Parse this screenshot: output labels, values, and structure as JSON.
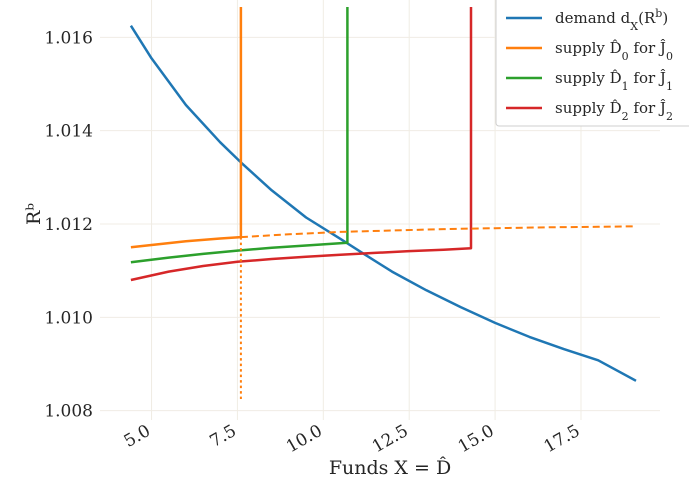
{
  "chart_data": {
    "type": "line",
    "xlabel": "Funds X = D̂",
    "ylabel": "Rᵇ",
    "xlim": [
      3.5,
      19.8
    ],
    "ylim": [
      1.0078,
      1.0168
    ],
    "x_ticks": [
      5.0,
      7.5,
      10.0,
      12.5,
      15.0,
      17.5
    ],
    "x_tick_labels": [
      "5.0",
      "7.5",
      "10.0",
      "12.5",
      "15.0",
      "17.5"
    ],
    "y_ticks": [
      1.008,
      1.01,
      1.012,
      1.014,
      1.016
    ],
    "y_tick_labels": [
      "1.008",
      "1.010",
      "1.012",
      "1.014",
      "1.016"
    ],
    "grid": true,
    "legend_position": "top-right",
    "series": [
      {
        "name": "demand d_X(R^b)",
        "color": "#1f77b4",
        "style": "solid",
        "points": [
          [
            4.4,
            1.01625
          ],
          [
            5.0,
            1.01555
          ],
          [
            6.0,
            1.01455
          ],
          [
            7.0,
            1.01375
          ],
          [
            7.6,
            1.01332
          ],
          [
            8.5,
            1.01272
          ],
          [
            9.5,
            1.01214
          ],
          [
            10.5,
            1.01168
          ],
          [
            11.2,
            1.01135
          ],
          [
            12.0,
            1.01098
          ],
          [
            13.0,
            1.01058
          ],
          [
            14.0,
            1.01022
          ],
          [
            15.0,
            1.00988
          ],
          [
            16.0,
            1.00958
          ],
          [
            17.0,
            1.00932
          ],
          [
            18.0,
            1.00908
          ],
          [
            19.1,
            1.00864
          ]
        ]
      },
      {
        "name": "supply D̂₀ for Ĵ₀",
        "color": "#ff7f0e",
        "style": "solid",
        "points": [
          [
            4.4,
            1.0115
          ],
          [
            5.0,
            1.01155
          ],
          [
            6.0,
            1.01163
          ],
          [
            7.0,
            1.01169
          ],
          [
            7.6,
            1.01172
          ],
          [
            7.6,
            1.01665
          ]
        ]
      },
      {
        "name": "supply D̂₁ for Ĵ₁",
        "color": "#2ca02c",
        "style": "solid",
        "points": [
          [
            4.4,
            1.01118
          ],
          [
            5.5,
            1.01128
          ],
          [
            6.5,
            1.01136
          ],
          [
            7.5,
            1.01143
          ],
          [
            8.5,
            1.01149
          ],
          [
            9.5,
            1.01154
          ],
          [
            10.7,
            1.0116
          ],
          [
            10.7,
            1.01665
          ]
        ]
      },
      {
        "name": "supply D̂₂ for Ĵ₂",
        "color": "#d62728",
        "style": "solid",
        "points": [
          [
            4.4,
            1.0108
          ],
          [
            5.5,
            1.01098
          ],
          [
            6.5,
            1.0111
          ],
          [
            7.5,
            1.01119
          ],
          [
            8.5,
            1.01125
          ],
          [
            9.5,
            1.0113
          ],
          [
            10.5,
            1.01134
          ],
          [
            11.5,
            1.01138
          ],
          [
            12.5,
            1.01142
          ],
          [
            13.5,
            1.01145
          ],
          [
            14.3,
            1.01148
          ],
          [
            14.3,
            1.01665
          ]
        ]
      },
      {
        "color": "#ff7f0e",
        "style": "dashed",
        "points": [
          [
            7.6,
            1.01172
          ],
          [
            9.0,
            1.01178
          ],
          [
            10.5,
            1.01183
          ],
          [
            12.0,
            1.01186
          ],
          [
            13.5,
            1.01189
          ],
          [
            15.0,
            1.01191
          ],
          [
            16.5,
            1.01193
          ],
          [
            18.0,
            1.01194
          ],
          [
            19.1,
            1.01195
          ]
        ]
      },
      {
        "color": "#ff7f0e",
        "style": "dotted",
        "points": [
          [
            7.6,
            1.01172
          ],
          [
            7.6,
            1.00825
          ]
        ]
      }
    ]
  },
  "legend": [
    {
      "label": "demand d",
      "sub": "X",
      "suffix": "(R",
      "sup": "b",
      "close": ")",
      "color": "#1f77b4"
    },
    {
      "label": "supply D̂",
      "sub": "0",
      "suffix": " for Ĵ",
      "sup": "",
      "close": "",
      "sub2": "0",
      "color": "#ff7f0e"
    },
    {
      "label": "supply D̂",
      "sub": "1",
      "suffix": " for Ĵ",
      "sup": "",
      "close": "",
      "sub2": "1",
      "color": "#2ca02c"
    },
    {
      "label": "supply D̂",
      "sub": "2",
      "suffix": " for Ĵ",
      "sup": "",
      "close": "",
      "sub2": "2",
      "color": "#d62728"
    }
  ]
}
